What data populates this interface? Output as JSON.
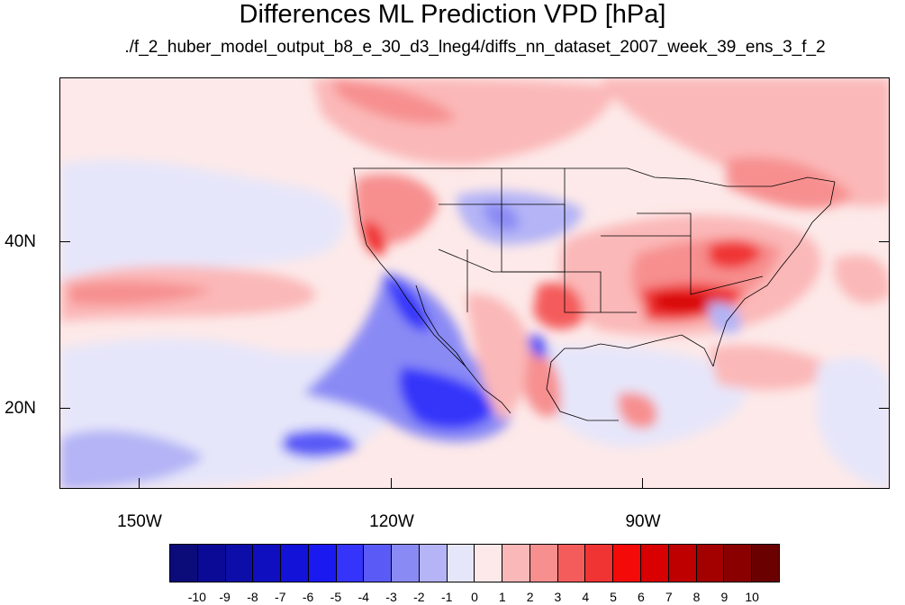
{
  "title": "Differences ML Prediction VPD [hPa]",
  "subtitle": "./f_2_huber_model_output_b8_e_30_d3_lneg4/diffs_nn_dataset_2007_week_39_ens_3_f_2",
  "axes": {
    "y_labels": [
      "40N",
      "20N"
    ],
    "x_labels": [
      "150W",
      "120W",
      "90W"
    ]
  },
  "map": {
    "projection": "cylindrical equidistant",
    "lon_range": [
      -159,
      -61
    ],
    "lat_range": [
      11,
      60
    ],
    "features": [
      "coastlines",
      "US state boundaries",
      "national boundaries"
    ]
  },
  "colorbar": {
    "labels": [
      "-10",
      "-9",
      "-8",
      "-7",
      "-6",
      "-5",
      "-4",
      "-3",
      "-2",
      "-1",
      "0",
      "1",
      "2",
      "3",
      "4",
      "5",
      "6",
      "7",
      "8",
      "9",
      "10"
    ],
    "colors": [
      "#0b0b7a",
      "#0a0a96",
      "#0d0daa",
      "#0f0fc0",
      "#1212d8",
      "#1a1af0",
      "#3434fa",
      "#5a5af7",
      "#8a8af5",
      "#b4b4f6",
      "#e6e6fa",
      "#fde9e9",
      "#fbb8b8",
      "#f78f8f",
      "#f45c5c",
      "#f03434",
      "#f50a0a",
      "#d80000",
      "#bf0000",
      "#a30000",
      "#8a0000",
      "#6b0000"
    ]
  }
}
